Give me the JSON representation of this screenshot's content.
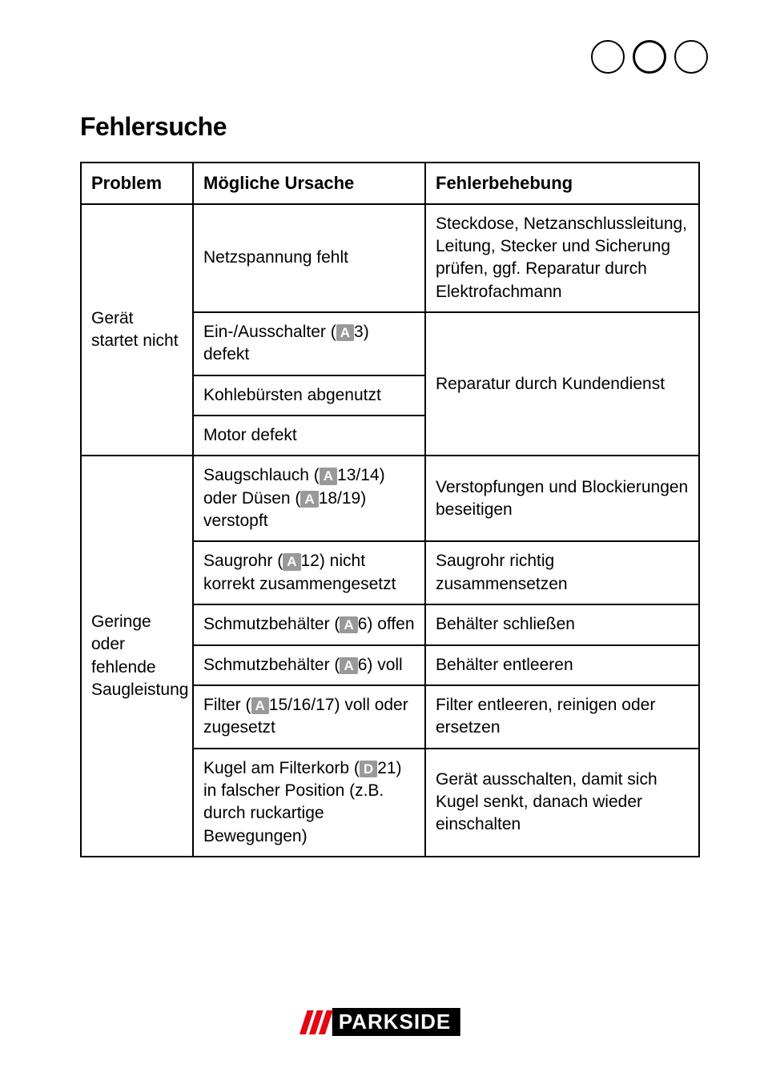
{
  "page_indicator": {
    "circle_count": 3
  },
  "title": "Fehlersuche",
  "headers": {
    "problem": "Problem",
    "cause": "Mögliche Ursache",
    "fix": "Fehlerbehebung"
  },
  "groups": [
    {
      "problem": "Gerät startet nicht",
      "rows": [
        {
          "cause": [
            {
              "t": "Netzspannung fehlt"
            }
          ],
          "fix": [
            {
              "t": "Steckdose, Netzanschlussleitung, Leitung, Stecker und Sicherung prüfen, ggf. Reparatur durch Elektrofachmann"
            }
          ],
          "fix_rowspan": 1
        },
        {
          "cause": [
            {
              "t": "Ein-/Ausschalter ("
            },
            {
              "ref": "A"
            },
            {
              "t": "3) defekt"
            }
          ],
          "fix": [
            {
              "t": "Reparatur durch Kundendienst"
            }
          ],
          "fix_rowspan": 3
        },
        {
          "cause": [
            {
              "t": "Kohlebürsten abgenutzt"
            }
          ]
        },
        {
          "cause": [
            {
              "t": "Motor defekt"
            }
          ]
        }
      ]
    },
    {
      "problem": "Geringe oder fehlende Saugleistung",
      "rows": [
        {
          "cause": [
            {
              "t": "Saugschlauch ("
            },
            {
              "ref": "A"
            },
            {
              "t": "13/14) oder Düsen ("
            },
            {
              "ref": "A"
            },
            {
              "t": "18/19) verstopft"
            }
          ],
          "fix": [
            {
              "t": "Verstopfungen und Blockierungen beseitigen"
            }
          ]
        },
        {
          "cause": [
            {
              "t": "Saugrohr ("
            },
            {
              "ref": "A"
            },
            {
              "t": "12) nicht korrekt zusammengesetzt"
            }
          ],
          "fix": [
            {
              "t": "Saugrohr richtig zusammensetzen"
            }
          ]
        },
        {
          "cause": [
            {
              "t": "Schmutzbehälter ("
            },
            {
              "ref": "A"
            },
            {
              "t": "6) offen"
            }
          ],
          "fix": [
            {
              "t": "Behälter schließen"
            }
          ]
        },
        {
          "cause": [
            {
              "t": "Schmutzbehälter ("
            },
            {
              "ref": "A"
            },
            {
              "t": "6) voll"
            }
          ],
          "fix": [
            {
              "t": "Behälter entleeren"
            }
          ]
        },
        {
          "cause": [
            {
              "t": "Filter ("
            },
            {
              "ref": "A"
            },
            {
              "t": "15/16/17) voll oder zugesetzt"
            }
          ],
          "fix": [
            {
              "t": "Filter entleeren, reinigen oder ersetzen"
            }
          ]
        },
        {
          "cause": [
            {
              "t": "Kugel am Filterkorb ("
            },
            {
              "ref": "D"
            },
            {
              "t": "21) in falscher Position (z.B. durch ruckartige Bewegungen)"
            }
          ],
          "fix": [
            {
              "t": "Gerät ausschalten, damit sich Kugel senkt, danach wieder einschalten"
            }
          ]
        }
      ]
    }
  ],
  "footer": {
    "brand": "PARKSIDE"
  },
  "style": {
    "ref_badge_bg": "#999999",
    "ref_badge_fg": "#ffffff",
    "stripe_color": "#e30613",
    "logo_bg": "#000000",
    "logo_fg": "#ffffff",
    "border_color": "#000000",
    "font_family": "Helvetica Neue, Helvetica, Arial, sans-serif"
  }
}
